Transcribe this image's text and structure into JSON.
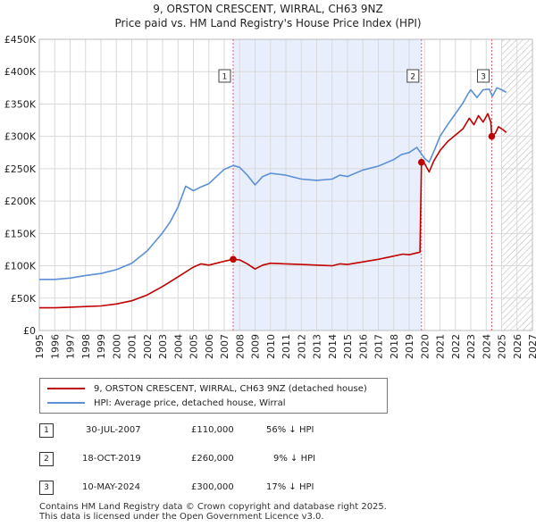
{
  "header": {
    "title": "9, ORSTON CRESCENT, WIRRAL, CH63 9NZ",
    "subtitle": "Price paid vs. HM Land Registry's House Price Index (HPI)"
  },
  "colors": {
    "price_line": "#c00000",
    "hpi_line": "#5b8fd6",
    "highlight_fill": "#e8eefb",
    "grid": "#d9d9d9",
    "event_line": "#e06060"
  },
  "chart_data": {
    "type": "line",
    "title": "9, ORSTON CRESCENT, WIRRAL, CH63 9NZ",
    "subtitle": "Price paid vs. HM Land Registry's House Price Index (HPI)",
    "xlabel": "",
    "ylabel": "",
    "xlim": [
      1995,
      2027
    ],
    "ylim": [
      0,
      450000
    ],
    "x_ticks": [
      "1995",
      "1996",
      "1997",
      "1998",
      "1999",
      "2000",
      "2001",
      "2002",
      "2003",
      "2004",
      "2005",
      "2006",
      "2007",
      "2008",
      "2009",
      "2010",
      "2011",
      "2012",
      "2013",
      "2014",
      "2015",
      "2016",
      "2017",
      "2018",
      "2019",
      "2020",
      "2021",
      "2022",
      "2023",
      "2024",
      "2025",
      "2026",
      "2027"
    ],
    "y_ticks": [
      {
        "value": 0,
        "label": "£0"
      },
      {
        "value": 50000,
        "label": "£50K"
      },
      {
        "value": 100000,
        "label": "£100K"
      },
      {
        "value": 150000,
        "label": "£150K"
      },
      {
        "value": 200000,
        "label": "£200K"
      },
      {
        "value": 250000,
        "label": "£250K"
      },
      {
        "value": 300000,
        "label": "£300K"
      },
      {
        "value": 350000,
        "label": "£350K"
      },
      {
        "value": 400000,
        "label": "£400K"
      },
      {
        "value": 450000,
        "label": "£450K"
      }
    ],
    "grid": true,
    "highlight_ranges": [
      [
        2007.58,
        2019.8
      ]
    ],
    "forecast_from": 2025.0,
    "series": [
      {
        "name": "9, ORSTON CRESCENT, WIRRAL, CH63 9NZ (detached house)",
        "color": "#c00000",
        "points": [
          [
            1995,
            35000
          ],
          [
            1996,
            35000
          ],
          [
            1997,
            36000
          ],
          [
            1998,
            37000
          ],
          [
            1999,
            38000
          ],
          [
            2000,
            41000
          ],
          [
            2001,
            46000
          ],
          [
            2002,
            55000
          ],
          [
            2003,
            68000
          ],
          [
            2004,
            83000
          ],
          [
            2005,
            98000
          ],
          [
            2005.5,
            103000
          ],
          [
            2006,
            101000
          ],
          [
            2006.5,
            104000
          ],
          [
            2007,
            107000
          ],
          [
            2007.58,
            110000
          ],
          [
            2008,
            109000
          ],
          [
            2008.5,
            103000
          ],
          [
            2009,
            95000
          ],
          [
            2009.5,
            101000
          ],
          [
            2010,
            104000
          ],
          [
            2011,
            103000
          ],
          [
            2012,
            102000
          ],
          [
            2013,
            101000
          ],
          [
            2014,
            100000
          ],
          [
            2014.5,
            103000
          ],
          [
            2015,
            102000
          ],
          [
            2016,
            106000
          ],
          [
            2017,
            110000
          ],
          [
            2018,
            115000
          ],
          [
            2018.6,
            118000
          ],
          [
            2019,
            117000
          ],
          [
            2019.7,
            121000
          ],
          [
            2019.8,
            260000
          ],
          [
            2020,
            258000
          ],
          [
            2020.3,
            245000
          ],
          [
            2020.6,
            262000
          ],
          [
            2021,
            278000
          ],
          [
            2021.5,
            292000
          ],
          [
            2022,
            302000
          ],
          [
            2022.5,
            312000
          ],
          [
            2022.9,
            328000
          ],
          [
            2023.2,
            318000
          ],
          [
            2023.5,
            332000
          ],
          [
            2023.8,
            322000
          ],
          [
            2024.1,
            335000
          ],
          [
            2024.3,
            322000
          ],
          [
            2024.36,
            300000
          ],
          [
            2024.6,
            305000
          ],
          [
            2024.8,
            315000
          ],
          [
            2025.1,
            310000
          ],
          [
            2025.3,
            306000
          ]
        ]
      },
      {
        "name": "HPI: Average price, detached house, Wirral",
        "color": "#5b8fd6",
        "points": [
          [
            1995,
            79000
          ],
          [
            1996,
            79000
          ],
          [
            1997,
            81000
          ],
          [
            1998,
            85000
          ],
          [
            1999,
            88000
          ],
          [
            2000,
            94000
          ],
          [
            2001,
            104000
          ],
          [
            2002,
            123000
          ],
          [
            2003,
            151000
          ],
          [
            2003.5,
            168000
          ],
          [
            2004,
            191000
          ],
          [
            2004.5,
            223000
          ],
          [
            2005,
            216000
          ],
          [
            2005.5,
            222000
          ],
          [
            2006,
            227000
          ],
          [
            2006.5,
            238000
          ],
          [
            2007,
            249000
          ],
          [
            2007.6,
            255000
          ],
          [
            2008,
            252000
          ],
          [
            2008.5,
            240000
          ],
          [
            2009,
            225000
          ],
          [
            2009.5,
            238000
          ],
          [
            2010,
            243000
          ],
          [
            2011,
            240000
          ],
          [
            2012,
            234000
          ],
          [
            2013,
            232000
          ],
          [
            2014,
            234000
          ],
          [
            2014.5,
            240000
          ],
          [
            2015,
            238000
          ],
          [
            2016,
            248000
          ],
          [
            2017,
            254000
          ],
          [
            2018,
            264000
          ],
          [
            2018.5,
            272000
          ],
          [
            2019,
            275000
          ],
          [
            2019.5,
            283000
          ],
          [
            2020,
            266000
          ],
          [
            2020.3,
            260000
          ],
          [
            2020.7,
            282000
          ],
          [
            2021,
            300000
          ],
          [
            2021.5,
            318000
          ],
          [
            2022,
            335000
          ],
          [
            2022.5,
            352000
          ],
          [
            2022.8,
            365000
          ],
          [
            2023,
            372000
          ],
          [
            2023.4,
            360000
          ],
          [
            2023.8,
            372000
          ],
          [
            2024.2,
            373000
          ],
          [
            2024.4,
            362000
          ],
          [
            2024.7,
            375000
          ],
          [
            2025,
            372000
          ],
          [
            2025.3,
            368000
          ]
        ]
      }
    ],
    "markers": [
      {
        "label": "1",
        "x": 2007.58,
        "y": 110000
      },
      {
        "label": "2",
        "x": 2019.8,
        "y": 260000
      },
      {
        "label": "3",
        "x": 2024.36,
        "y": 300000
      }
    ]
  },
  "legend": {
    "items": [
      {
        "label": "9, ORSTON CRESCENT, WIRRAL, CH63 9NZ (detached house)"
      },
      {
        "label": "HPI: Average price, detached house, Wirral"
      }
    ]
  },
  "transactions": [
    {
      "num": "1",
      "date": "30-JUL-2007",
      "price": "£110,000",
      "hpi": "56% ↓ HPI"
    },
    {
      "num": "2",
      "date": "18-OCT-2019",
      "price": "£260,000",
      "hpi": "9% ↓ HPI"
    },
    {
      "num": "3",
      "date": "10-MAY-2024",
      "price": "£300,000",
      "hpi": "17% ↓ HPI"
    }
  ],
  "footer": {
    "line1": "Contains HM Land Registry data © Crown copyright and database right 2025.",
    "line2": "This data is licensed under the Open Government Licence v3.0."
  }
}
